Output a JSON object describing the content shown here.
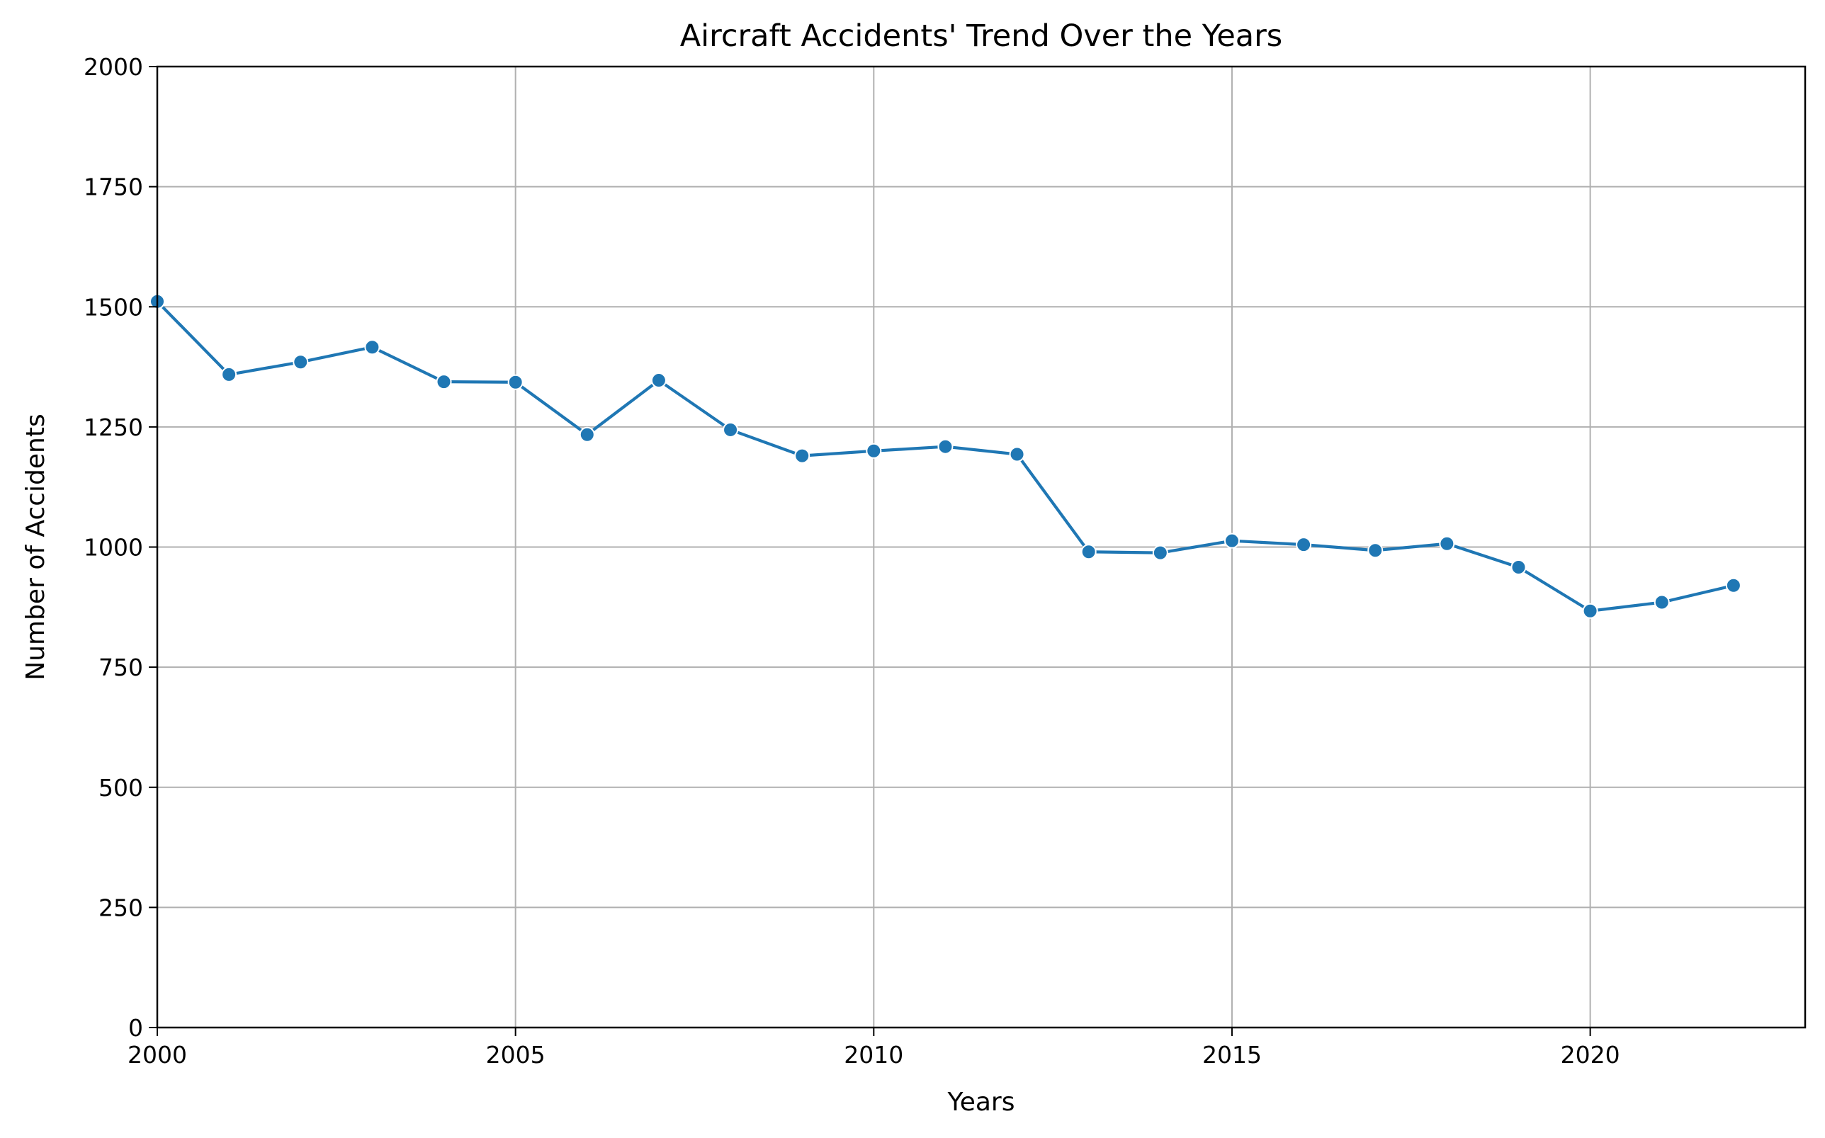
{
  "chart_data": {
    "type": "line",
    "title": "Aircraft Accidents' Trend Over the Years",
    "xlabel": "Years",
    "ylabel": "Number of Accidents",
    "xlim": [
      2000,
      2023
    ],
    "ylim": [
      0,
      2000
    ],
    "xticks": [
      2000,
      2005,
      2010,
      2015,
      2020
    ],
    "yticks": [
      0,
      250,
      500,
      750,
      1000,
      1250,
      1500,
      1750,
      2000
    ],
    "grid": true,
    "series": [
      {
        "color": "#1f77b4",
        "marker": "circle",
        "x": [
          2000,
          2001,
          2002,
          2003,
          2004,
          2005,
          2006,
          2007,
          2008,
          2009,
          2010,
          2011,
          2012,
          2013,
          2014,
          2015,
          2016,
          2017,
          2018,
          2019,
          2020,
          2021,
          2022
        ],
        "y": [
          1511,
          1359,
          1385,
          1416,
          1344,
          1343,
          1234,
          1347,
          1244,
          1190,
          1200,
          1209,
          1193,
          990,
          988,
          1013,
          1005,
          993,
          1007,
          958,
          867,
          885,
          920
        ]
      }
    ]
  }
}
